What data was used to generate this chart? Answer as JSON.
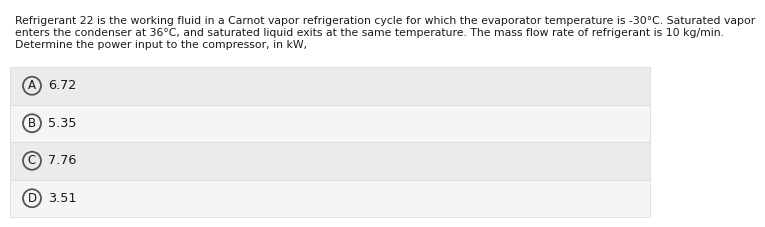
{
  "question_text_line1": "Refrigerant 22 is the working fluid in a Carnot vapor refrigeration cycle for which the evaporator temperature is -30°C. Saturated vapor",
  "question_text_line2": "enters the condenser at 36°C, and saturated liquid exits at the same temperature. The mass flow rate of refrigerant is 10 kg/min.",
  "question_text_line3": "Determine the power input to the compressor, in kW,",
  "options": [
    {
      "label": "A",
      "value": "6.72"
    },
    {
      "label": "B",
      "value": "5.35"
    },
    {
      "label": "C",
      "value": "7.76"
    },
    {
      "label": "D",
      "value": "3.51"
    }
  ],
  "background_color": "#ffffff",
  "option_bg_even": "#ebebeb",
  "option_bg_odd": "#f5f5f5",
  "option_border_color": "#d8d8d8",
  "text_color": "#1a1a1a",
  "circle_edge_color": "#555555",
  "question_fontsize": 7.8,
  "option_fontsize": 9.2,
  "circle_letter_fontsize": 8.5
}
